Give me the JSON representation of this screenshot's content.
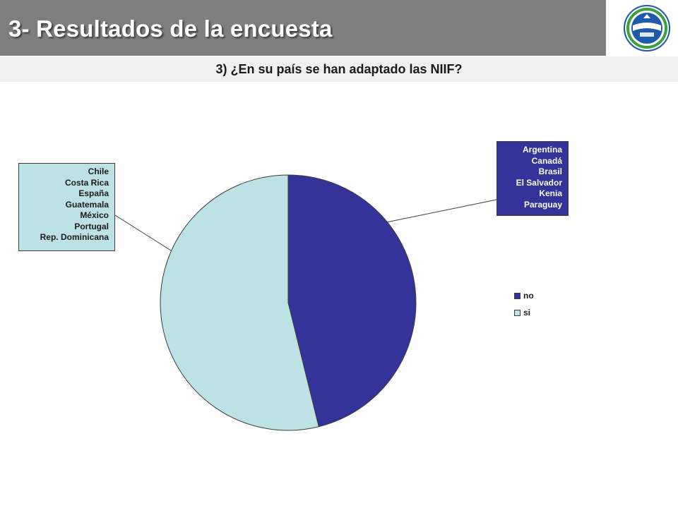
{
  "slide": {
    "title": "3- Resultados de la encuesta",
    "subtitle": "3) ¿En su país se han adaptado las NIIF?"
  },
  "logo": {
    "icon": "association-seal-logo",
    "colors": [
      "#1e5aa8",
      "#3aa23a",
      "#ffffff"
    ]
  },
  "chart_data": {
    "type": "pie",
    "slices": [
      {
        "name": "no",
        "value": 6,
        "color": "#333399"
      },
      {
        "name": "si",
        "value": 7,
        "color": "#bde2e6"
      }
    ],
    "legend": {
      "position": "right",
      "entries": [
        "no",
        "si"
      ]
    },
    "annotations": [
      {
        "series": "no",
        "countries": [
          "Argentina",
          "Canadá",
          "Brasil",
          "El Salvador",
          "Kenia",
          "Paraguay"
        ]
      },
      {
        "series": "si",
        "countries": [
          "Chile",
          "Costa Rica",
          "España",
          "Guatemala",
          "México",
          "Portugal",
          "Rep. Dominicana"
        ]
      }
    ]
  }
}
